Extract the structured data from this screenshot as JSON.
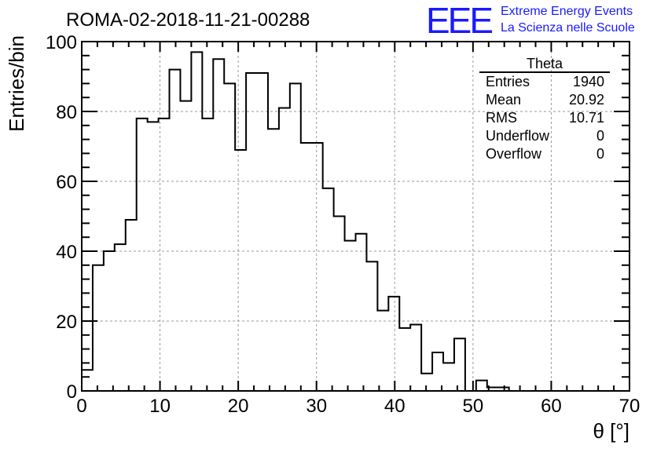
{
  "chart_data": {
    "type": "histogram",
    "title": "ROMA-02-2018-11-21-00288",
    "xlabel": "θ [°]",
    "ylabel": "Entries/bin",
    "xlim": [
      0,
      70
    ],
    "ylim": [
      0,
      100
    ],
    "bin_width": 1.4,
    "x_ticks": [
      "0",
      "10",
      "20",
      "30",
      "40",
      "50",
      "60",
      "70"
    ],
    "y_ticks": [
      "0",
      "20",
      "40",
      "60",
      "80",
      "100"
    ],
    "grid": true,
    "values": [
      6,
      36,
      40,
      42,
      49,
      78,
      77,
      78,
      92,
      83,
      97,
      78,
      95,
      88,
      69,
      91,
      91,
      75,
      81,
      88,
      71,
      71,
      58,
      50,
      43,
      45,
      37,
      23,
      27,
      18,
      19,
      5,
      11,
      8,
      15,
      0,
      3,
      1,
      1,
      0,
      0,
      0,
      0,
      0,
      0,
      0,
      0,
      0,
      0,
      0
    ]
  },
  "stats_box": {
    "title": "Theta",
    "rows": [
      {
        "label": "Entries",
        "value": "1940"
      },
      {
        "label": "Mean",
        "value": "20.92"
      },
      {
        "label": "RMS",
        "value": "10.71"
      },
      {
        "label": "Underflow",
        "value": "0"
      },
      {
        "label": "Overflow",
        "value": "0"
      }
    ]
  },
  "logo": {
    "mark": "EEE",
    "line1": "Extreme Energy Events",
    "line2": "La Scienza nelle Scuole",
    "color": "#1a1aff"
  }
}
